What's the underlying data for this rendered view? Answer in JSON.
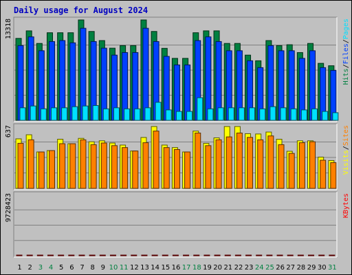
{
  "chart_data": {
    "type": "bar",
    "title": "Daily usage for August 2024",
    "categories": [
      "1",
      "2",
      "3",
      "4",
      "5",
      "6",
      "7",
      "8",
      "9",
      "10",
      "11",
      "12",
      "13",
      "14",
      "15",
      "16",
      "17",
      "18",
      "19",
      "20",
      "21",
      "22",
      "23",
      "24",
      "25",
      "26",
      "27",
      "28",
      "29",
      "30",
      "31"
    ],
    "weekend_days": [
      "3",
      "4",
      "10",
      "11",
      "17",
      "18",
      "24",
      "25",
      "31"
    ],
    "colors": {
      "hits": "#008040",
      "files": "#0040ff",
      "pages": "#00e0ff",
      "visits": "#ffff00",
      "sites": "#ff8000",
      "kbytes": "#ff0000",
      "title": "#0000c0",
      "weekend": "#008040",
      "weekday": "#000000",
      "background": "#c0c0c0"
    },
    "panels": [
      {
        "id": "usage",
        "max_label": "13318",
        "ymax": 13318,
        "legend": [
          {
            "text": "Hits",
            "color": "#008040"
          },
          {
            "text": "/",
            "color": "#000000"
          },
          {
            "text": "Files",
            "color": "#0040ff"
          },
          {
            "text": "/",
            "color": "#000000"
          },
          {
            "text": "Pages",
            "color": "#00e0ff"
          }
        ],
        "series": [
          {
            "name": "Hits",
            "color": "#008040",
            "values": [
              10870,
              11870,
              10200,
              11620,
              11620,
              11620,
              13318,
              11790,
              10580,
              9570,
              9910,
              9910,
              13318,
              11790,
              9550,
              8220,
              8220,
              11620,
              11870,
              11870,
              10200,
              10200,
              8650,
              7900,
              10580,
              9910,
              10030,
              8990,
              10200,
              7560,
              7240
            ]
          },
          {
            "name": "Files",
            "color": "#0040ff",
            "values": [
              9910,
              11070,
              9230,
              10450,
              10580,
              10280,
              12210,
              10450,
              9570,
              8650,
              8990,
              8990,
              12210,
              10450,
              8480,
              7350,
              7350,
              10580,
              11070,
              10450,
              9230,
              9230,
              7900,
              6990,
              9910,
              9230,
              9230,
              8220,
              9230,
              6990,
              6620
            ]
          },
          {
            "name": "Pages",
            "color": "#00e0ff",
            "values": [
              1660,
              1900,
              1520,
              1660,
              1660,
              1810,
              1900,
              1960,
              1520,
              1660,
              1520,
              1520,
              1660,
              2390,
              1380,
              1180,
              1180,
              3000,
              1520,
              1660,
              1660,
              1660,
              1660,
              1520,
              1810,
              1660,
              1520,
              1380,
              1520,
              1180,
              1010
            ]
          }
        ]
      },
      {
        "id": "visits",
        "max_label": "637",
        "ymax": 637,
        "legend": [
          {
            "text": "Visits",
            "color": "#ffff00"
          },
          {
            "text": "/",
            "color": "#000000"
          },
          {
            "text": "Sites",
            "color": "#ff8000"
          }
        ],
        "series": [
          {
            "name": "Visits",
            "color": "#ffff00",
            "values": [
              510,
              552,
              375,
              389,
              506,
              460,
              515,
              480,
              490,
              467,
              446,
              385,
              524,
              637,
              446,
              420,
              375,
              590,
              464,
              520,
              637,
              637,
              563,
              560,
              580,
              506,
              382,
              490,
              490,
              322,
              287
            ]
          },
          {
            "name": "Sites",
            "color": "#ff8000",
            "values": [
              464,
              500,
              375,
              389,
              460,
              460,
              500,
              450,
              467,
              440,
              420,
              385,
              470,
              590,
              420,
              400,
              375,
              570,
              440,
              500,
              530,
              570,
              525,
              500,
              540,
              450,
              360,
              470,
              480,
              290,
              265
            ]
          }
        ]
      },
      {
        "id": "kbytes",
        "max_label": "9728423",
        "ymax": 9728423,
        "legend": [
          {
            "text": "KBytes",
            "color": "#ff0000"
          }
        ],
        "series": [
          {
            "name": "KBytes",
            "color": "#ff0000",
            "values": [
              7800,
              7600,
              6800,
              8300,
              7600,
              8000,
              9000,
              7200,
              7500,
              5700,
              6700,
              6500,
              9728,
              7700,
              6200,
              5500,
              5600,
              6800,
              7700,
              7300,
              6500,
              6800,
              6000,
              4900,
              7400,
              6600,
              7200,
              6800,
              6700,
              4400,
              4600
            ]
          }
        ]
      }
    ]
  }
}
